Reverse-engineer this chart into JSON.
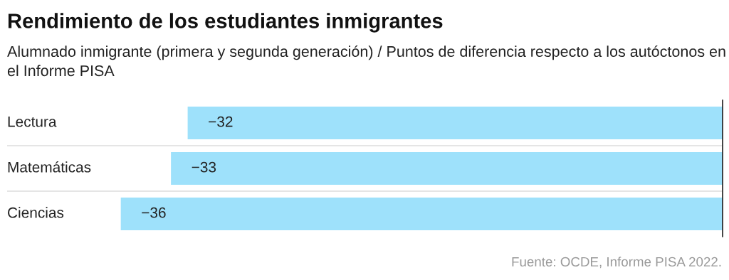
{
  "chart_data": {
    "type": "bar",
    "orientation": "horizontal",
    "title": "Rendimiento de los estudiantes inmigrantes",
    "subtitle": "Alumnado inmigrante (primera y segunda generación) / Puntos de diferencia respecto a los autóctonos en el Informe PISA",
    "categories": [
      "Lectura",
      "Matemáticas",
      "Ciencias"
    ],
    "values": [
      -32,
      -33,
      -36
    ],
    "color": "#9ee1fb",
    "xlim": [
      -42.8,
      0
    ],
    "data_labels": true,
    "annotations": [
      "Fuente: OCDE, Informe PISA 2022."
    ]
  }
}
